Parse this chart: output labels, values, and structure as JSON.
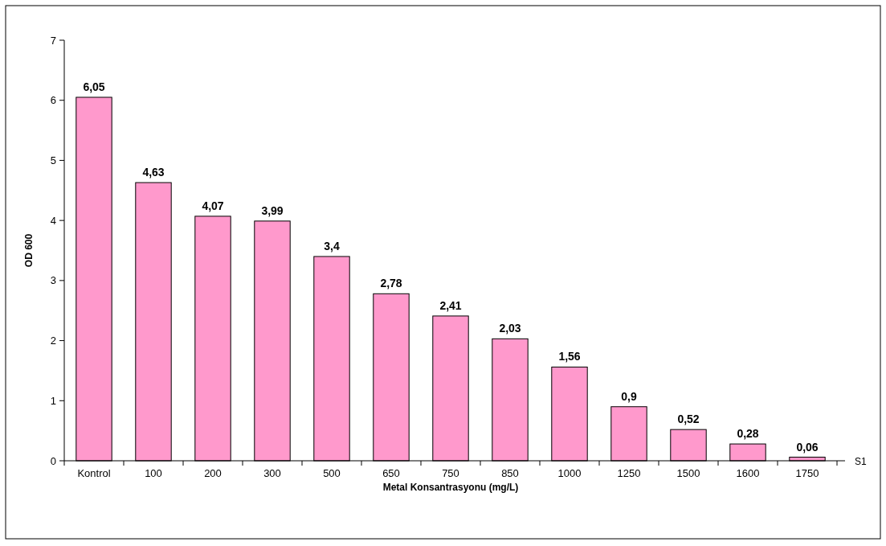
{
  "chart_data": {
    "type": "bar",
    "xlabel": "Metal Konsantrasyonu (mg/L)",
    "ylabel": "OD 600",
    "categories": [
      "Kontrol",
      "100",
      "200",
      "300",
      "500",
      "650",
      "750",
      "850",
      "1000",
      "1250",
      "1500",
      "1600",
      "1750"
    ],
    "series": [
      {
        "name": "S1",
        "color": "#ff99cc",
        "values": [
          6.05,
          4.63,
          4.07,
          3.99,
          3.4,
          2.78,
          2.41,
          2.03,
          1.56,
          0.9,
          0.52,
          0.28,
          0.06
        ]
      }
    ],
    "value_labels": [
      "6,05",
      "4,63",
      "4,07",
      "3,99",
      "3,4",
      "2,78",
      "2,41",
      "2,03",
      "1,56",
      "0,9",
      "0,52",
      "0,28",
      "0,06"
    ],
    "ylim": [
      0,
      7
    ],
    "yticks": [
      0,
      1,
      2,
      3,
      4,
      5,
      6,
      7
    ],
    "grid": false
  }
}
